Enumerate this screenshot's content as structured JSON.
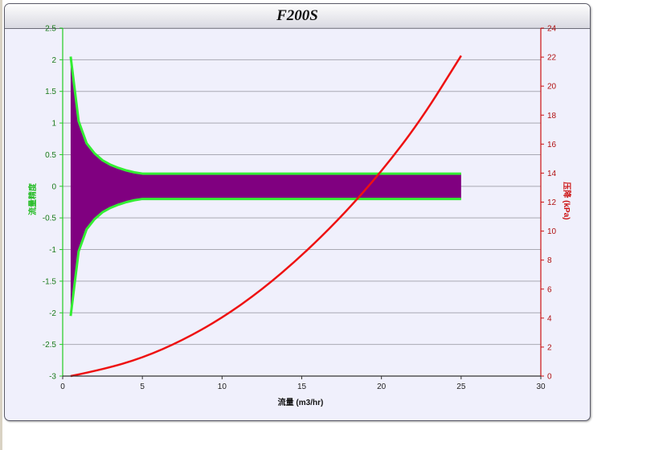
{
  "chart_data": {
    "type": "line",
    "title": "F200S",
    "xlabel": "流量 (m3/hr)",
    "ylabel_left": "流量精度",
    "ylabel_right": "压降 (kPa)",
    "xlim": [
      0,
      30
    ],
    "ylim_left": [
      -3,
      2.5
    ],
    "ylim_right": [
      0,
      24
    ],
    "x_ticks": [
      0,
      5,
      10,
      15,
      20,
      25,
      30
    ],
    "y_left_ticks": [
      -3,
      -2.5,
      -2,
      -1.5,
      -1,
      -0.5,
      0,
      0.5,
      1,
      1.5,
      2,
      2.5
    ],
    "y_right_ticks": [
      0,
      2,
      4,
      6,
      8,
      10,
      12,
      14,
      16,
      18,
      20,
      22,
      24
    ],
    "grid": true,
    "accuracy_envelope": {
      "fill_color": "#800080",
      "line_color": "#33ee33",
      "x": [
        0.5,
        1.0,
        1.5,
        2.0,
        2.5,
        3.0,
        3.5,
        4.0,
        4.5,
        5.0,
        5.5,
        25.0
      ],
      "upper": [
        2.05,
        1.03,
        0.68,
        0.52,
        0.41,
        0.34,
        0.29,
        0.25,
        0.22,
        0.2,
        0.2,
        0.2
      ],
      "lower": [
        -2.05,
        -1.03,
        -0.68,
        -0.52,
        -0.41,
        -0.34,
        -0.29,
        -0.25,
        -0.22,
        -0.2,
        -0.2,
        -0.2
      ]
    },
    "pressure_drop": {
      "axis": "right",
      "color": "#ee1111",
      "x": [
        0.5,
        2.5,
        5,
        7.5,
        10,
        12.5,
        15,
        17.5,
        20,
        22.5,
        25
      ],
      "y": [
        0.0,
        0.45,
        1.25,
        2.45,
        4.0,
        5.95,
        8.3,
        11.0,
        14.1,
        17.7,
        22.1
      ]
    }
  }
}
